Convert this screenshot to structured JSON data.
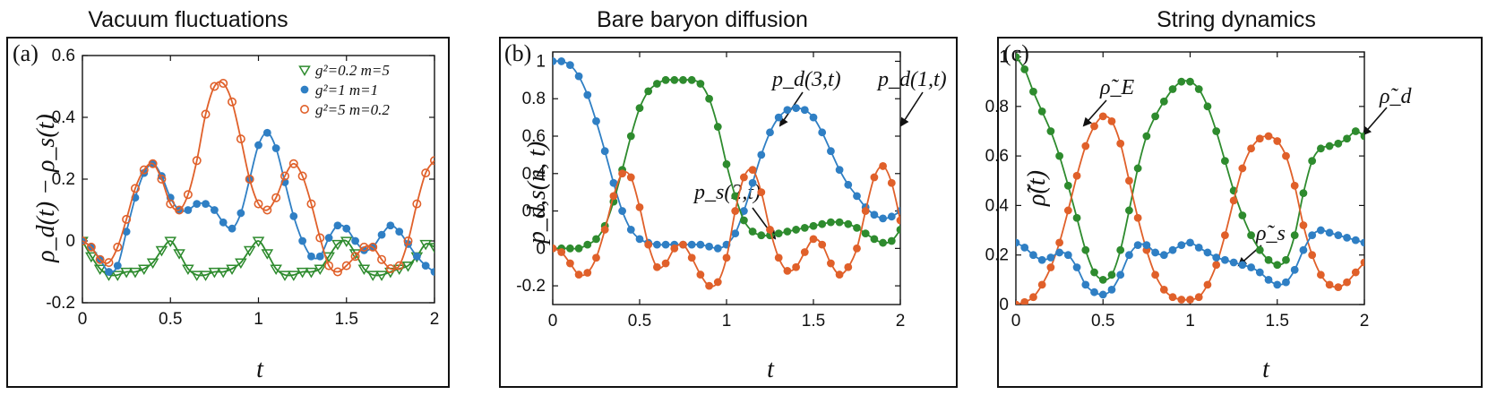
{
  "chart_data": [
    {
      "type": "line",
      "title": "Vacuum fluctuations",
      "panel_label": "(a)",
      "xlabel": "t",
      "ylabel": "ρ_d(t) − ρ_s(t)",
      "xlim": [
        0,
        2
      ],
      "ylim": [
        -0.2,
        0.6
      ],
      "xticks": [
        "0",
        "0.5",
        "1",
        "1.5",
        "2"
      ],
      "xtick_values": [
        0,
        0.5,
        1,
        1.5,
        2
      ],
      "yticks": [
        "-0.2",
        "0",
        "0.2",
        "0.4",
        "0.6"
      ],
      "ytick_values": [
        -0.2,
        0,
        0.2,
        0.4,
        0.6
      ],
      "legend_position": "top-right",
      "legend": [
        {
          "text": "g²=0.2  m=5",
          "marker": "triangle-down",
          "color": "#2e8b2e"
        },
        {
          "text": "g²=1    m=1",
          "marker": "filled-circle",
          "color": "#2f7fc4"
        },
        {
          "text": "g²=5  m=0.2",
          "marker": "open-circle",
          "color": "#e0602a"
        }
      ],
      "series": [
        {
          "color": "#2e8b2e",
          "marker": "triangle-down",
          "x": [
            0,
            0.05,
            0.1,
            0.15,
            0.2,
            0.25,
            0.3,
            0.35,
            0.4,
            0.45,
            0.5,
            0.55,
            0.6,
            0.65,
            0.7,
            0.75,
            0.8,
            0.85,
            0.9,
            0.95,
            1.0,
            1.05,
            1.1,
            1.15,
            1.2,
            1.25,
            1.3,
            1.35,
            1.4,
            1.45,
            1.5,
            1.55,
            1.6,
            1.65,
            1.7,
            1.75,
            1.8,
            1.85,
            1.9,
            1.95,
            2.0
          ],
          "y": [
            0,
            -0.05,
            -0.09,
            -0.11,
            -0.11,
            -0.1,
            -0.1,
            -0.09,
            -0.07,
            -0.03,
            0,
            -0.04,
            -0.09,
            -0.11,
            -0.11,
            -0.1,
            -0.1,
            -0.09,
            -0.07,
            -0.03,
            0,
            -0.04,
            -0.09,
            -0.11,
            -0.11,
            -0.1,
            -0.1,
            -0.09,
            -0.05,
            -0.01,
            0,
            -0.04,
            -0.09,
            -0.11,
            -0.11,
            -0.1,
            -0.09,
            -0.08,
            -0.05,
            -0.01,
            -0.02
          ]
        },
        {
          "color": "#2f7fc4",
          "marker": "filled-circle",
          "x": [
            0,
            0.05,
            0.1,
            0.15,
            0.2,
            0.25,
            0.3,
            0.35,
            0.4,
            0.45,
            0.5,
            0.55,
            0.6,
            0.65,
            0.7,
            0.75,
            0.8,
            0.85,
            0.9,
            0.95,
            1.0,
            1.05,
            1.1,
            1.15,
            1.2,
            1.25,
            1.3,
            1.35,
            1.4,
            1.45,
            1.5,
            1.55,
            1.6,
            1.65,
            1.7,
            1.75,
            1.8,
            1.85,
            1.9,
            1.95,
            2.0
          ],
          "y": [
            0,
            -0.02,
            -0.06,
            -0.1,
            -0.08,
            0.03,
            0.14,
            0.22,
            0.25,
            0.21,
            0.14,
            0.1,
            0.1,
            0.12,
            0.12,
            0.1,
            0.06,
            0.04,
            0.09,
            0.2,
            0.31,
            0.35,
            0.3,
            0.19,
            0.08,
            0.0,
            -0.05,
            -0.05,
            0.01,
            0.05,
            0.04,
            0.0,
            -0.03,
            -0.02,
            0.02,
            0.05,
            0.03,
            -0.01,
            -0.05,
            -0.08,
            -0.1
          ]
        },
        {
          "color": "#e0602a",
          "marker": "open-circle",
          "x": [
            0,
            0.05,
            0.1,
            0.15,
            0.2,
            0.25,
            0.3,
            0.35,
            0.4,
            0.45,
            0.5,
            0.55,
            0.6,
            0.65,
            0.7,
            0.75,
            0.8,
            0.85,
            0.9,
            0.95,
            1.0,
            1.05,
            1.1,
            1.15,
            1.2,
            1.25,
            1.3,
            1.35,
            1.4,
            1.45,
            1.5,
            1.55,
            1.6,
            1.65,
            1.7,
            1.75,
            1.8,
            1.85,
            1.9,
            1.95,
            2.0
          ],
          "y": [
            0,
            -0.02,
            -0.06,
            -0.07,
            -0.02,
            0.07,
            0.17,
            0.23,
            0.25,
            0.2,
            0.12,
            0.1,
            0.15,
            0.26,
            0.41,
            0.5,
            0.51,
            0.45,
            0.33,
            0.2,
            0.12,
            0.1,
            0.14,
            0.21,
            0.25,
            0.21,
            0.12,
            0.01,
            -0.08,
            -0.1,
            -0.08,
            -0.05,
            -0.02,
            -0.02,
            -0.06,
            -0.09,
            -0.08,
            0.0,
            0.12,
            0.22,
            0.26
          ]
        }
      ]
    },
    {
      "type": "line",
      "title": "Bare baryon diffusion",
      "panel_label": "(b)",
      "xlabel": "t",
      "ylabel": "p_d,s(n, t)",
      "xlim": [
        0,
        2
      ],
      "ylim": [
        -0.3,
        1.05
      ],
      "xticks": [
        "0",
        "0.5",
        "1",
        "1.5",
        "2"
      ],
      "xtick_values": [
        0,
        0.5,
        1,
        1.5,
        2
      ],
      "yticks": [
        "-0.2",
        "0",
        "0.2",
        "0.4",
        "0.6",
        "0.8",
        "1"
      ],
      "ytick_values": [
        -0.2,
        0,
        0.2,
        0.4,
        0.6,
        0.8,
        1
      ],
      "annotations": [
        {
          "text": "p_d(3,t)",
          "series": 1
        },
        {
          "text": "p_d(1,t)",
          "series": 0
        },
        {
          "text": "p_s(2,t)",
          "series": 2
        }
      ],
      "series": [
        {
          "color": "#2f7fc4",
          "marker": "filled-circle",
          "x": [
            0,
            0.05,
            0.1,
            0.15,
            0.2,
            0.25,
            0.3,
            0.35,
            0.4,
            0.45,
            0.5,
            0.55,
            0.6,
            0.65,
            0.7,
            0.75,
            0.8,
            0.85,
            0.9,
            0.95,
            1.0,
            1.05,
            1.1,
            1.15,
            1.2,
            1.25,
            1.3,
            1.35,
            1.4,
            1.45,
            1.5,
            1.55,
            1.6,
            1.65,
            1.7,
            1.75,
            1.8,
            1.85,
            1.9,
            1.95,
            2.0
          ],
          "y": [
            1.0,
            1.0,
            0.98,
            0.92,
            0.82,
            0.68,
            0.52,
            0.35,
            0.2,
            0.1,
            0.05,
            0.03,
            0.02,
            0.02,
            0.02,
            0.02,
            0.02,
            0.02,
            0.01,
            0.0,
            0.02,
            0.08,
            0.2,
            0.35,
            0.5,
            0.62,
            0.7,
            0.74,
            0.75,
            0.74,
            0.7,
            0.62,
            0.52,
            0.42,
            0.34,
            0.28,
            0.22,
            0.18,
            0.16,
            0.17,
            0.2
          ]
        },
        {
          "color": "#2e8b2e",
          "marker": "filled-circle",
          "x": [
            0,
            0.05,
            0.1,
            0.15,
            0.2,
            0.25,
            0.3,
            0.35,
            0.4,
            0.45,
            0.5,
            0.55,
            0.6,
            0.65,
            0.7,
            0.75,
            0.8,
            0.85,
            0.9,
            0.95,
            1.0,
            1.05,
            1.1,
            1.15,
            1.2,
            1.25,
            1.3,
            1.35,
            1.4,
            1.45,
            1.5,
            1.55,
            1.6,
            1.65,
            1.7,
            1.75,
            1.8,
            1.85,
            1.9,
            1.95,
            2.0
          ],
          "y": [
            0,
            0,
            0,
            0,
            0.02,
            0.05,
            0.12,
            0.25,
            0.42,
            0.6,
            0.75,
            0.84,
            0.88,
            0.9,
            0.9,
            0.9,
            0.9,
            0.88,
            0.8,
            0.65,
            0.45,
            0.28,
            0.15,
            0.09,
            0.07,
            0.07,
            0.08,
            0.09,
            0.1,
            0.11,
            0.12,
            0.13,
            0.14,
            0.14,
            0.13,
            0.11,
            0.08,
            0.05,
            0.03,
            0.04,
            0.1
          ]
        },
        {
          "color": "#e0602a",
          "marker": "filled-circle",
          "x": [
            0,
            0.05,
            0.1,
            0.15,
            0.2,
            0.25,
            0.3,
            0.35,
            0.4,
            0.45,
            0.5,
            0.55,
            0.6,
            0.65,
            0.7,
            0.75,
            0.8,
            0.85,
            0.9,
            0.95,
            1.0,
            1.05,
            1.1,
            1.15,
            1.2,
            1.25,
            1.3,
            1.35,
            1.4,
            1.45,
            1.5,
            1.55,
            1.6,
            1.65,
            1.7,
            1.75,
            1.8,
            1.85,
            1.9,
            1.95,
            2.0
          ],
          "y": [
            0,
            -0.02,
            -0.08,
            -0.14,
            -0.13,
            -0.05,
            0.1,
            0.28,
            0.4,
            0.38,
            0.22,
            0.02,
            -0.1,
            -0.08,
            0.0,
            0.02,
            -0.05,
            -0.14,
            -0.2,
            -0.18,
            -0.05,
            0.2,
            0.38,
            0.42,
            0.3,
            0.1,
            -0.05,
            -0.12,
            -0.1,
            -0.02,
            0.05,
            0.02,
            -0.08,
            -0.14,
            -0.1,
            0.0,
            0.2,
            0.38,
            0.44,
            0.35,
            0.15
          ]
        }
      ]
    },
    {
      "type": "line",
      "title": "String dynamics",
      "panel_label": "(c)",
      "xlabel": "t",
      "ylabel": "ρ̃(t)",
      "xlim": [
        0,
        2
      ],
      "ylim": [
        0,
        1.02
      ],
      "xticks": [
        "0",
        "0.5",
        "1",
        "1.5",
        "2"
      ],
      "xtick_values": [
        0,
        0.5,
        1,
        1.5,
        2
      ],
      "yticks": [
        "0",
        "0.2",
        "0.4",
        "0.6",
        "0.8",
        "1"
      ],
      "ytick_values": [
        0,
        0.2,
        0.4,
        0.6,
        0.8,
        1
      ],
      "annotations": [
        {
          "text": "ρ̃_E",
          "series": 0
        },
        {
          "text": "ρ̃_d",
          "series": 1
        },
        {
          "text": "ρ̃_s",
          "series": 2
        }
      ],
      "series": [
        {
          "color": "#2e8b2e",
          "marker": "filled-circle",
          "x": [
            0,
            0.05,
            0.1,
            0.15,
            0.2,
            0.25,
            0.3,
            0.35,
            0.4,
            0.45,
            0.5,
            0.55,
            0.6,
            0.65,
            0.7,
            0.75,
            0.8,
            0.85,
            0.9,
            0.95,
            1.0,
            1.05,
            1.1,
            1.15,
            1.2,
            1.25,
            1.3,
            1.35,
            1.4,
            1.45,
            1.5,
            1.55,
            1.6,
            1.65,
            1.7,
            1.75,
            1.8,
            1.85,
            1.9,
            1.95,
            2.0
          ],
          "y": [
            1.0,
            0.95,
            0.86,
            0.78,
            0.7,
            0.6,
            0.48,
            0.35,
            0.22,
            0.13,
            0.1,
            0.12,
            0.22,
            0.38,
            0.55,
            0.68,
            0.76,
            0.82,
            0.87,
            0.9,
            0.9,
            0.87,
            0.8,
            0.7,
            0.58,
            0.46,
            0.36,
            0.28,
            0.22,
            0.18,
            0.16,
            0.18,
            0.28,
            0.45,
            0.58,
            0.63,
            0.64,
            0.65,
            0.67,
            0.7,
            0.68
          ]
        },
        {
          "color": "#e0602a",
          "marker": "filled-circle",
          "x": [
            0,
            0.05,
            0.1,
            0.15,
            0.2,
            0.25,
            0.3,
            0.35,
            0.4,
            0.45,
            0.5,
            0.55,
            0.6,
            0.65,
            0.7,
            0.75,
            0.8,
            0.85,
            0.9,
            0.95,
            1.0,
            1.05,
            1.1,
            1.15,
            1.2,
            1.25,
            1.3,
            1.35,
            1.4,
            1.45,
            1.5,
            1.55,
            1.6,
            1.65,
            1.7,
            1.75,
            1.8,
            1.85,
            1.9,
            1.95,
            2.0
          ],
          "y": [
            0.0,
            0.01,
            0.03,
            0.08,
            0.15,
            0.25,
            0.38,
            0.52,
            0.64,
            0.72,
            0.76,
            0.74,
            0.65,
            0.5,
            0.35,
            0.22,
            0.12,
            0.06,
            0.03,
            0.02,
            0.02,
            0.03,
            0.08,
            0.16,
            0.28,
            0.42,
            0.55,
            0.63,
            0.67,
            0.68,
            0.66,
            0.6,
            0.48,
            0.32,
            0.2,
            0.12,
            0.08,
            0.07,
            0.09,
            0.13,
            0.17
          ]
        },
        {
          "color": "#2f7fc4",
          "marker": "filled-circle",
          "x": [
            0,
            0.05,
            0.1,
            0.15,
            0.2,
            0.25,
            0.3,
            0.35,
            0.4,
            0.45,
            0.5,
            0.55,
            0.6,
            0.65,
            0.7,
            0.75,
            0.8,
            0.85,
            0.9,
            0.95,
            1.0,
            1.05,
            1.1,
            1.15,
            1.2,
            1.25,
            1.3,
            1.35,
            1.4,
            1.45,
            1.5,
            1.55,
            1.6,
            1.65,
            1.7,
            1.75,
            1.8,
            1.85,
            1.9,
            1.95,
            2.0
          ],
          "y": [
            0.25,
            0.23,
            0.2,
            0.18,
            0.19,
            0.21,
            0.2,
            0.15,
            0.08,
            0.05,
            0.04,
            0.06,
            0.12,
            0.2,
            0.24,
            0.24,
            0.21,
            0.2,
            0.22,
            0.24,
            0.25,
            0.23,
            0.21,
            0.19,
            0.18,
            0.17,
            0.16,
            0.15,
            0.13,
            0.1,
            0.08,
            0.09,
            0.14,
            0.22,
            0.28,
            0.3,
            0.29,
            0.28,
            0.27,
            0.26,
            0.25
          ]
        }
      ]
    }
  ]
}
